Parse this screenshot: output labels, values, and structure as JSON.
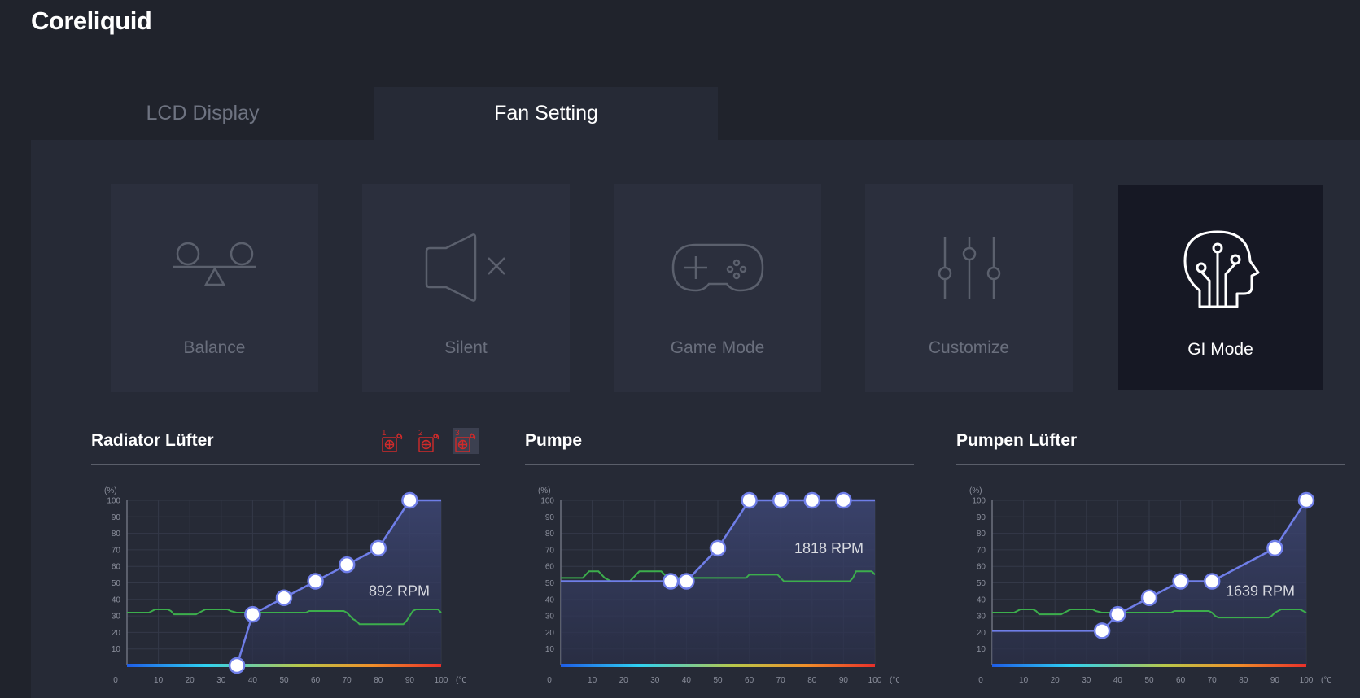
{
  "app": {
    "title": "Coreliquid"
  },
  "tabs": [
    {
      "label": "LCD Display",
      "active": false
    },
    {
      "label": "Fan Setting",
      "active": true
    }
  ],
  "modes": [
    {
      "label": "Balance",
      "icon": "balance-icon",
      "active": false
    },
    {
      "label": "Silent",
      "icon": "speaker-mute-icon",
      "active": false
    },
    {
      "label": "Game Mode",
      "icon": "gamepad-icon",
      "active": false
    },
    {
      "label": "Customize",
      "icon": "sliders-icon",
      "active": false
    },
    {
      "label": "GI Mode",
      "icon": "ai-head-icon",
      "active": true
    }
  ],
  "fan_badges": [
    "1",
    "2",
    "3"
  ],
  "colors": {
    "curve": "#6f7ee8",
    "temp_line": "#3cae4c",
    "accent_red": "#d9243d",
    "accent_blue": "#3b4ccf",
    "fan_badge": "#d02a2a"
  },
  "axis": {
    "y_unit": "(%)",
    "x_unit": "(°C)",
    "y_ticks": [
      10,
      20,
      30,
      40,
      50,
      60,
      70,
      80,
      90,
      100
    ],
    "x_ticks": [
      0,
      10,
      20,
      30,
      40,
      50,
      60,
      70,
      80,
      90,
      100
    ]
  },
  "charts": [
    {
      "title": "Radiator Lüfter",
      "rpm": "892 RPM",
      "curve": [
        [
          0,
          0
        ],
        [
          35,
          0
        ],
        [
          40,
          31
        ],
        [
          50,
          41
        ],
        [
          60,
          51
        ],
        [
          70,
          61
        ],
        [
          80,
          71
        ],
        [
          90,
          100
        ],
        [
          100,
          100
        ]
      ],
      "points": [
        [
          35,
          0
        ],
        [
          40,
          31
        ],
        [
          50,
          41
        ],
        [
          60,
          51
        ],
        [
          70,
          61
        ],
        [
          80,
          71
        ],
        [
          90,
          100
        ]
      ],
      "temp": [
        [
          0,
          32
        ],
        [
          7,
          32
        ],
        [
          8,
          33
        ],
        [
          9,
          34
        ],
        [
          13,
          34
        ],
        [
          14,
          33
        ],
        [
          15,
          31
        ],
        [
          22,
          31
        ],
        [
          23,
          32
        ],
        [
          24,
          33
        ],
        [
          25,
          34
        ],
        [
          32,
          34
        ],
        [
          33,
          33
        ],
        [
          35,
          32
        ],
        [
          45,
          32
        ],
        [
          57,
          32
        ],
        [
          58,
          33
        ],
        [
          69,
          33
        ],
        [
          70,
          32
        ],
        [
          71,
          30
        ],
        [
          72,
          28
        ],
        [
          73,
          27
        ],
        [
          74,
          25
        ],
        [
          88,
          25
        ],
        [
          89,
          27
        ],
        [
          90,
          30
        ],
        [
          91,
          33
        ],
        [
          92,
          34
        ],
        [
          99,
          34
        ],
        [
          100,
          32
        ]
      ]
    },
    {
      "title": "Pumpe",
      "rpm": "1818 RPM",
      "curve": [
        [
          0,
          51
        ],
        [
          35,
          51
        ],
        [
          40,
          51
        ],
        [
          50,
          71
        ],
        [
          60,
          100
        ],
        [
          70,
          100
        ],
        [
          80,
          100
        ],
        [
          90,
          100
        ],
        [
          100,
          100
        ]
      ],
      "points": [
        [
          35,
          51
        ],
        [
          40,
          51
        ],
        [
          50,
          71
        ],
        [
          60,
          100
        ],
        [
          70,
          100
        ],
        [
          80,
          100
        ],
        [
          90,
          100
        ]
      ],
      "temp": [
        [
          0,
          53
        ],
        [
          7,
          53
        ],
        [
          8,
          55
        ],
        [
          9,
          57
        ],
        [
          12,
          57
        ],
        [
          13,
          55
        ],
        [
          14,
          53
        ],
        [
          16,
          51
        ],
        [
          22,
          51
        ],
        [
          23,
          53
        ],
        [
          24,
          55
        ],
        [
          25,
          57
        ],
        [
          32,
          57
        ],
        [
          33,
          55
        ],
        [
          34,
          53
        ],
        [
          59,
          53
        ],
        [
          60,
          55
        ],
        [
          69,
          55
        ],
        [
          70,
          53
        ],
        [
          71,
          51
        ],
        [
          92,
          51
        ],
        [
          93,
          53
        ],
        [
          94,
          57
        ],
        [
          99,
          57
        ],
        [
          100,
          55
        ]
      ]
    },
    {
      "title": "Pumpen Lüfter",
      "rpm": "1639 RPM",
      "curve": [
        [
          0,
          21
        ],
        [
          35,
          21
        ],
        [
          40,
          31
        ],
        [
          50,
          41
        ],
        [
          60,
          51
        ],
        [
          70,
          51
        ],
        [
          90,
          71
        ],
        [
          100,
          100
        ]
      ],
      "points": [
        [
          35,
          21
        ],
        [
          40,
          31
        ],
        [
          50,
          41
        ],
        [
          60,
          51
        ],
        [
          70,
          51
        ],
        [
          90,
          71
        ],
        [
          100,
          100
        ]
      ],
      "temp": [
        [
          0,
          32
        ],
        [
          7,
          32
        ],
        [
          8,
          33
        ],
        [
          9,
          34
        ],
        [
          13,
          34
        ],
        [
          14,
          33
        ],
        [
          15,
          31
        ],
        [
          22,
          31
        ],
        [
          23,
          32
        ],
        [
          24,
          33
        ],
        [
          25,
          34
        ],
        [
          32,
          34
        ],
        [
          33,
          33
        ],
        [
          35,
          32
        ],
        [
          57,
          32
        ],
        [
          58,
          33
        ],
        [
          69,
          33
        ],
        [
          70,
          32
        ],
        [
          71,
          30
        ],
        [
          72,
          29
        ],
        [
          88,
          29
        ],
        [
          89,
          30
        ],
        [
          90,
          32
        ],
        [
          91,
          33
        ],
        [
          92,
          34
        ],
        [
          98,
          34
        ],
        [
          99,
          33
        ],
        [
          100,
          32
        ]
      ]
    }
  ]
}
